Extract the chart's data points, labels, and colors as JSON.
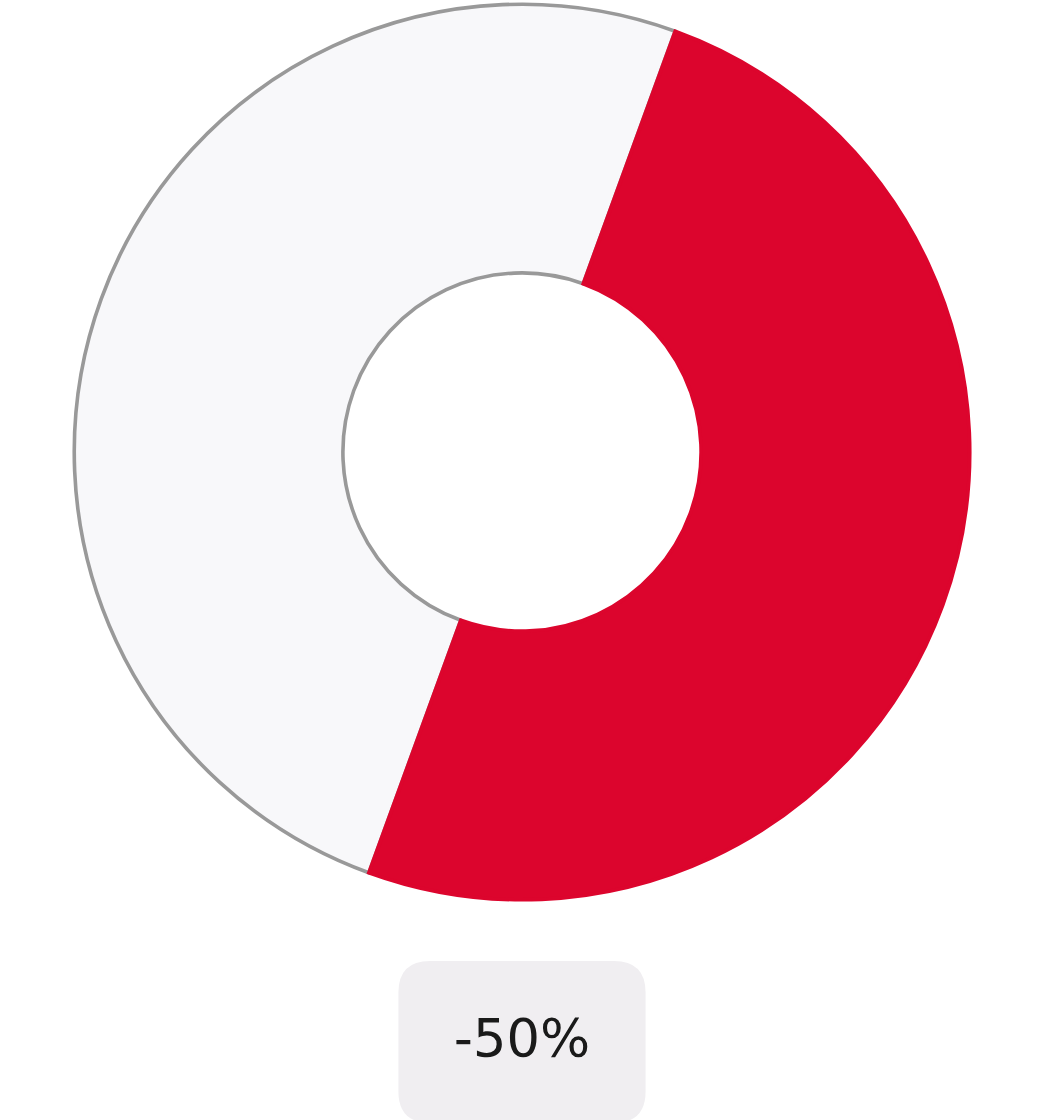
{
  "chart_data": {
    "type": "donut",
    "categories": [
      null,
      null
    ],
    "values": [
      50,
      50
    ],
    "colors": [
      "#dc052d",
      "#f8f8fa"
    ],
    "annotations": [
      "-50%"
    ]
  }
}
